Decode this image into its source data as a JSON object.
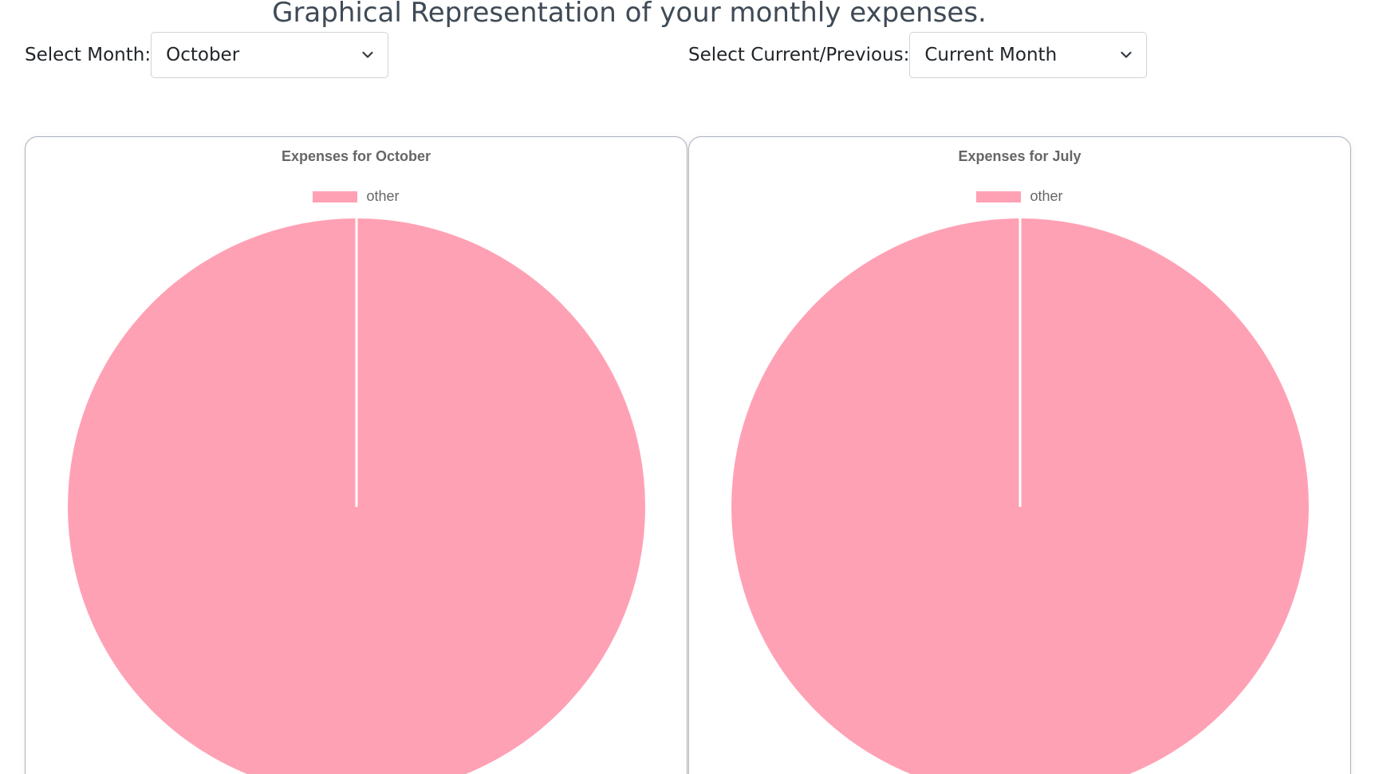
{
  "page": {
    "title": "Graphical Representation of your monthly expenses."
  },
  "filters": {
    "month_label": "Select Month:",
    "month_value": "October",
    "period_label": "Select Current/Previous:",
    "period_value": "Current Month"
  },
  "icons": {
    "select_arrow": "chevron-down-icon"
  },
  "colors": {
    "slice": "#ffa1b5",
    "slice_border": "#ffffff",
    "card_border": "#aab0bb"
  },
  "chart_data": [
    {
      "type": "pie",
      "title": "Expenses for October",
      "labels": [
        "other"
      ],
      "values": [
        100
      ],
      "legend_position": "top",
      "colors": [
        "#ffa1b5"
      ]
    },
    {
      "type": "pie",
      "title": "Expenses for July",
      "labels": [
        "other"
      ],
      "values": [
        100
      ],
      "legend_position": "top",
      "colors": [
        "#ffa1b5"
      ]
    }
  ]
}
